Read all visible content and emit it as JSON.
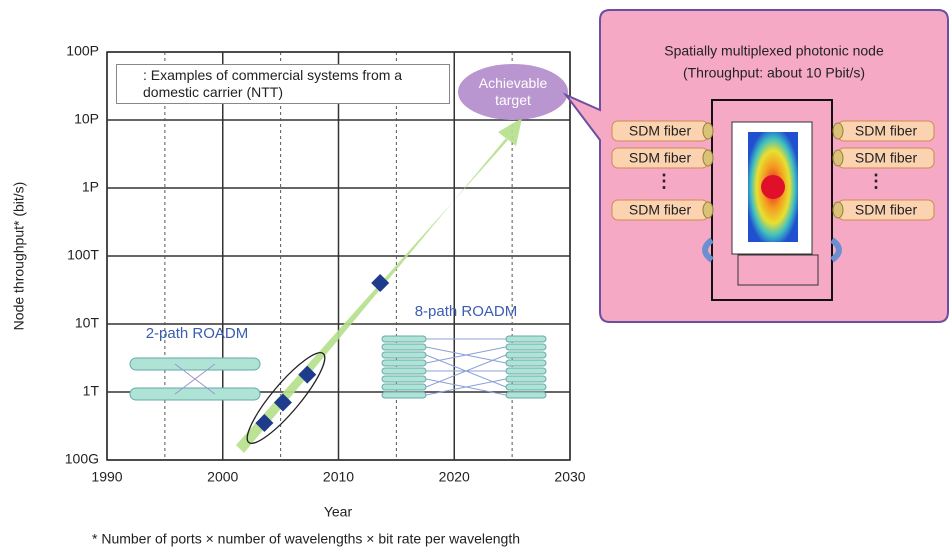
{
  "chart_data": {
    "type": "scatter",
    "xlabel": "Year",
    "ylabel": "Node throughput* (bit/s)",
    "xlim": [
      1990,
      2030
    ],
    "xticks": [
      1990,
      2000,
      2010,
      2020,
      2030
    ],
    "xminorticks": [
      1995,
      2005,
      2015,
      2025
    ],
    "ylim": [
      100000000000.0,
      1e+17
    ],
    "log_y": true,
    "grid": true,
    "yticks": [
      {
        "value": 100000000000.0,
        "label": "100G"
      },
      {
        "value": 1000000000000.0,
        "label": "1T"
      },
      {
        "value": 10000000000000.0,
        "label": "10T"
      },
      {
        "value": 100000000000000.0,
        "label": "100T"
      },
      {
        "value": 1000000000000000.0,
        "label": "1P"
      },
      {
        "value": 1e+16,
        "label": "10P"
      },
      {
        "value": 1e+17,
        "label": "100P"
      }
    ],
    "series": [
      {
        "name": ": Examples of commercial systems from a domestic carrier (NTT)",
        "color": "#1f3c8c",
        "x": [
          2003.6,
          2005.2,
          2007.3,
          2013.6
        ],
        "values": [
          350000000000.0,
          700000000000.0,
          1800000000000.0,
          40000000000000.0
        ]
      }
    ],
    "annotations": {
      "target": "Achievable target",
      "roadm2": "2-path ROADM",
      "roadm8": "8-path ROADM",
      "callout_title": "Spatially multiplexed photonic node",
      "callout_subtitle": "(Throughput: about 10 Pbit/s)",
      "fibers": [
        "SDM fiber",
        "SDM fiber",
        "SDM fiber",
        "SDM fiber",
        "SDM fiber",
        "SDM fiber"
      ]
    },
    "footnote": "* Number of ports × number of wavelengths × bit rate per wavelength"
  }
}
